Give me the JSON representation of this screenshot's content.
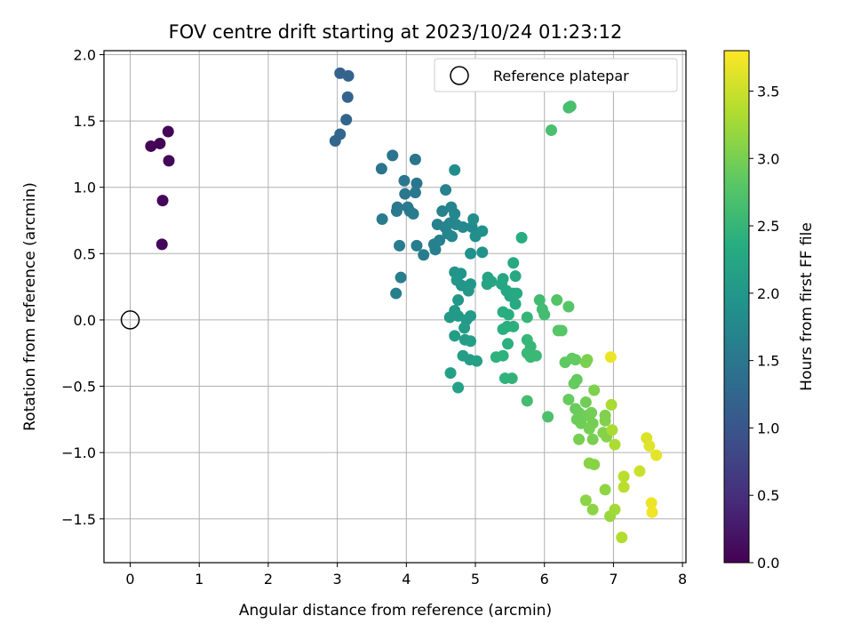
{
  "chart_data": {
    "type": "scatter",
    "title": "FOV centre drift starting at 2023/10/24 01:23:12",
    "xlabel": "Angular distance from reference (arcmin)",
    "ylabel": "Rotation from reference (arcmin)",
    "xlim": [
      -0.38,
      8.05
    ],
    "ylim": [
      -1.83,
      2.03
    ],
    "xticks": [
      0,
      1,
      2,
      3,
      4,
      5,
      6,
      7,
      8
    ],
    "yticks": [
      -1.5,
      -1.0,
      -0.5,
      0.0,
      0.5,
      1.0,
      1.5,
      2.0
    ],
    "grid": true,
    "legend": {
      "position": "top-right",
      "entries": [
        "Reference platepar"
      ]
    },
    "reference_point": {
      "x": 0,
      "y": 0
    },
    "colorbar": {
      "label": "Hours from first FF file",
      "colormap": "viridis",
      "range": [
        0.0,
        3.8
      ],
      "ticks": [
        0.0,
        0.5,
        1.0,
        1.5,
        2.0,
        2.5,
        3.0,
        3.5
      ]
    },
    "points": [
      {
        "x": 0.3,
        "y": 1.31,
        "t": 0.02
      },
      {
        "x": 0.43,
        "y": 1.33,
        "t": 0.03
      },
      {
        "x": 0.55,
        "y": 1.42,
        "t": 0.04
      },
      {
        "x": 0.56,
        "y": 1.2,
        "t": 0.05
      },
      {
        "x": 0.47,
        "y": 0.9,
        "t": 0.06
      },
      {
        "x": 0.46,
        "y": 0.57,
        "t": 0.07
      },
      {
        "x": 3.04,
        "y": 1.86,
        "t": 1.2
      },
      {
        "x": 3.16,
        "y": 1.84,
        "t": 1.21
      },
      {
        "x": 3.15,
        "y": 1.68,
        "t": 1.22
      },
      {
        "x": 3.13,
        "y": 1.51,
        "t": 1.23
      },
      {
        "x": 3.04,
        "y": 1.4,
        "t": 1.24
      },
      {
        "x": 2.97,
        "y": 1.35,
        "t": 1.25
      },
      {
        "x": 3.8,
        "y": 1.24,
        "t": 1.45
      },
      {
        "x": 3.64,
        "y": 1.14,
        "t": 1.46
      },
      {
        "x": 4.13,
        "y": 1.21,
        "t": 1.47
      },
      {
        "x": 3.97,
        "y": 1.05,
        "t": 1.48
      },
      {
        "x": 4.15,
        "y": 1.03,
        "t": 1.49
      },
      {
        "x": 3.98,
        "y": 0.95,
        "t": 1.5
      },
      {
        "x": 4.13,
        "y": 0.96,
        "t": 1.51
      },
      {
        "x": 3.87,
        "y": 0.85,
        "t": 1.52
      },
      {
        "x": 3.86,
        "y": 0.82,
        "t": 1.53
      },
      {
        "x": 4.02,
        "y": 0.85,
        "t": 1.54
      },
      {
        "x": 4.05,
        "y": 0.82,
        "t": 1.55
      },
      {
        "x": 4.1,
        "y": 0.8,
        "t": 1.56
      },
      {
        "x": 3.65,
        "y": 0.76,
        "t": 1.57
      },
      {
        "x": 3.9,
        "y": 0.56,
        "t": 1.58
      },
      {
        "x": 4.15,
        "y": 0.56,
        "t": 1.59
      },
      {
        "x": 4.25,
        "y": 0.49,
        "t": 1.6
      },
      {
        "x": 3.92,
        "y": 0.32,
        "t": 1.61
      },
      {
        "x": 3.85,
        "y": 0.2,
        "t": 1.62
      },
      {
        "x": 4.4,
        "y": 0.57,
        "t": 1.63
      },
      {
        "x": 4.42,
        "y": 0.53,
        "t": 1.64
      },
      {
        "x": 4.48,
        "y": 0.6,
        "t": 1.65
      },
      {
        "x": 4.45,
        "y": 0.72,
        "t": 1.66
      },
      {
        "x": 4.52,
        "y": 0.82,
        "t": 1.67
      },
      {
        "x": 4.57,
        "y": 0.98,
        "t": 1.68
      },
      {
        "x": 4.56,
        "y": 0.7,
        "t": 1.69
      },
      {
        "x": 4.6,
        "y": 0.65,
        "t": 1.7
      },
      {
        "x": 4.63,
        "y": 0.73,
        "t": 1.71
      },
      {
        "x": 4.65,
        "y": 0.85,
        "t": 1.72
      },
      {
        "x": 4.7,
        "y": 0.8,
        "t": 1.73
      },
      {
        "x": 4.72,
        "y": 0.72,
        "t": 1.74
      },
      {
        "x": 4.66,
        "y": 0.63,
        "t": 1.75
      },
      {
        "x": 4.82,
        "y": 0.7,
        "t": 1.76
      },
      {
        "x": 4.95,
        "y": 0.7,
        "t": 1.77
      },
      {
        "x": 4.7,
        "y": 1.13,
        "t": 1.85
      },
      {
        "x": 4.97,
        "y": 0.76,
        "t": 1.86
      },
      {
        "x": 5.0,
        "y": 0.63,
        "t": 1.88
      },
      {
        "x": 5.1,
        "y": 0.67,
        "t": 1.9
      },
      {
        "x": 4.93,
        "y": 0.5,
        "t": 1.92
      },
      {
        "x": 5.1,
        "y": 0.51,
        "t": 1.94
      },
      {
        "x": 4.7,
        "y": 0.36,
        "t": 1.96
      },
      {
        "x": 4.79,
        "y": 0.35,
        "t": 1.97
      },
      {
        "x": 4.73,
        "y": 0.3,
        "t": 1.98
      },
      {
        "x": 4.8,
        "y": 0.26,
        "t": 1.99
      },
      {
        "x": 4.93,
        "y": 0.27,
        "t": 2.0
      },
      {
        "x": 4.9,
        "y": 0.22,
        "t": 2.01
      },
      {
        "x": 4.75,
        "y": 0.15,
        "t": 2.02
      },
      {
        "x": 4.7,
        "y": 0.07,
        "t": 2.03
      },
      {
        "x": 4.63,
        "y": 0.02,
        "t": 2.04
      },
      {
        "x": 4.75,
        "y": 0.03,
        "t": 2.05
      },
      {
        "x": 4.87,
        "y": 0.0,
        "t": 2.06
      },
      {
        "x": 4.93,
        "y": 0.03,
        "t": 2.07
      },
      {
        "x": 4.84,
        "y": -0.06,
        "t": 2.08
      },
      {
        "x": 4.7,
        "y": -0.12,
        "t": 2.09
      },
      {
        "x": 4.85,
        "y": -0.15,
        "t": 2.1
      },
      {
        "x": 4.93,
        "y": -0.16,
        "t": 2.11
      },
      {
        "x": 4.82,
        "y": -0.27,
        "t": 2.12
      },
      {
        "x": 4.92,
        "y": -0.3,
        "t": 2.13
      },
      {
        "x": 5.02,
        "y": -0.31,
        "t": 2.14
      },
      {
        "x": 4.64,
        "y": -0.4,
        "t": 2.15
      },
      {
        "x": 4.75,
        "y": -0.51,
        "t": 2.16
      },
      {
        "x": 5.18,
        "y": 0.32,
        "t": 2.2
      },
      {
        "x": 5.17,
        "y": 0.27,
        "t": 2.21
      },
      {
        "x": 5.23,
        "y": 0.29,
        "t": 2.22
      },
      {
        "x": 5.4,
        "y": 0.31,
        "t": 2.23
      },
      {
        "x": 5.38,
        "y": 0.27,
        "t": 2.24
      },
      {
        "x": 5.45,
        "y": 0.22,
        "t": 2.25
      },
      {
        "x": 5.5,
        "y": 0.18,
        "t": 2.26
      },
      {
        "x": 5.55,
        "y": 0.2,
        "t": 2.27
      },
      {
        "x": 5.58,
        "y": 0.33,
        "t": 2.28
      },
      {
        "x": 5.55,
        "y": 0.43,
        "t": 2.29
      },
      {
        "x": 5.6,
        "y": 0.2,
        "t": 2.3
      },
      {
        "x": 5.58,
        "y": 0.12,
        "t": 2.31
      },
      {
        "x": 5.67,
        "y": 0.62,
        "t": 2.35
      },
      {
        "x": 5.4,
        "y": 0.06,
        "t": 2.36
      },
      {
        "x": 5.48,
        "y": 0.04,
        "t": 2.37
      },
      {
        "x": 5.46,
        "y": -0.05,
        "t": 2.38
      },
      {
        "x": 5.4,
        "y": -0.07,
        "t": 2.39
      },
      {
        "x": 5.55,
        "y": -0.05,
        "t": 2.4
      },
      {
        "x": 5.47,
        "y": -0.18,
        "t": 2.41
      },
      {
        "x": 5.4,
        "y": -0.27,
        "t": 2.42
      },
      {
        "x": 5.3,
        "y": -0.28,
        "t": 2.43
      },
      {
        "x": 5.43,
        "y": -0.44,
        "t": 2.44
      },
      {
        "x": 5.53,
        "y": -0.44,
        "t": 2.45
      },
      {
        "x": 5.75,
        "y": 0.02,
        "t": 2.5
      },
      {
        "x": 5.75,
        "y": -0.15,
        "t": 2.51
      },
      {
        "x": 5.8,
        "y": -0.2,
        "t": 2.52
      },
      {
        "x": 5.75,
        "y": -0.25,
        "t": 2.53
      },
      {
        "x": 5.8,
        "y": -0.28,
        "t": 2.54
      },
      {
        "x": 5.88,
        "y": -0.27,
        "t": 2.55
      },
      {
        "x": 5.93,
        "y": 0.15,
        "t": 2.6
      },
      {
        "x": 5.97,
        "y": 0.08,
        "t": 2.61
      },
      {
        "x": 6.0,
        "y": 0.04,
        "t": 2.62
      },
      {
        "x": 5.75,
        "y": -0.61,
        "t": 2.63
      },
      {
        "x": 6.05,
        "y": -0.73,
        "t": 2.7
      },
      {
        "x": 6.18,
        "y": 0.15,
        "t": 2.75
      },
      {
        "x": 6.35,
        "y": 0.1,
        "t": 2.76
      },
      {
        "x": 6.2,
        "y": -0.08,
        "t": 2.78
      },
      {
        "x": 6.25,
        "y": -0.08,
        "t": 2.79
      },
      {
        "x": 6.35,
        "y": 1.6,
        "t": 2.65
      },
      {
        "x": 6.38,
        "y": 1.61,
        "t": 2.66
      },
      {
        "x": 6.1,
        "y": 1.43,
        "t": 2.67
      },
      {
        "x": 6.3,
        "y": -0.32,
        "t": 2.85
      },
      {
        "x": 6.4,
        "y": -0.29,
        "t": 2.86
      },
      {
        "x": 6.45,
        "y": -0.3,
        "t": 2.87
      },
      {
        "x": 6.47,
        "y": -0.45,
        "t": 2.88
      },
      {
        "x": 6.43,
        "y": -0.48,
        "t": 2.89
      },
      {
        "x": 6.35,
        "y": -0.6,
        "t": 2.9
      },
      {
        "x": 6.45,
        "y": -0.67,
        "t": 2.91
      },
      {
        "x": 6.5,
        "y": -0.7,
        "t": 2.92
      },
      {
        "x": 6.47,
        "y": -0.75,
        "t": 2.93
      },
      {
        "x": 6.53,
        "y": -0.78,
        "t": 2.94
      },
      {
        "x": 6.6,
        "y": -0.62,
        "t": 2.95
      },
      {
        "x": 6.62,
        "y": -0.72,
        "t": 2.96
      },
      {
        "x": 6.68,
        "y": -0.7,
        "t": 2.97
      },
      {
        "x": 6.7,
        "y": -0.78,
        "t": 2.98
      },
      {
        "x": 6.65,
        "y": -0.82,
        "t": 2.99
      },
      {
        "x": 6.5,
        "y": -0.9,
        "t": 3.0
      },
      {
        "x": 6.7,
        "y": -0.9,
        "t": 3.01
      },
      {
        "x": 6.6,
        "y": -0.32,
        "t": 3.02
      },
      {
        "x": 6.62,
        "y": -0.3,
        "t": 3.03
      },
      {
        "x": 6.72,
        "y": -0.53,
        "t": 3.04
      },
      {
        "x": 6.88,
        "y": -0.72,
        "t": 3.05
      },
      {
        "x": 6.88,
        "y": -0.76,
        "t": 3.06
      },
      {
        "x": 6.85,
        "y": -0.85,
        "t": 3.07
      },
      {
        "x": 6.9,
        "y": -0.88,
        "t": 3.08
      },
      {
        "x": 6.65,
        "y": -1.08,
        "t": 3.1
      },
      {
        "x": 6.72,
        "y": -1.09,
        "t": 3.11
      },
      {
        "x": 6.6,
        "y": -1.36,
        "t": 3.12
      },
      {
        "x": 6.7,
        "y": -1.43,
        "t": 3.13
      },
      {
        "x": 6.88,
        "y": -1.28,
        "t": 3.14
      },
      {
        "x": 6.95,
        "y": -1.48,
        "t": 3.2
      },
      {
        "x": 7.02,
        "y": -1.43,
        "t": 3.25
      },
      {
        "x": 6.97,
        "y": -0.64,
        "t": 3.3
      },
      {
        "x": 6.98,
        "y": -0.83,
        "t": 3.31
      },
      {
        "x": 7.02,
        "y": -0.94,
        "t": 3.32
      },
      {
        "x": 7.12,
        "y": -1.64,
        "t": 3.35
      },
      {
        "x": 7.15,
        "y": -1.18,
        "t": 3.4
      },
      {
        "x": 7.15,
        "y": -1.26,
        "t": 3.41
      },
      {
        "x": 6.96,
        "y": -0.28,
        "t": 3.7
      },
      {
        "x": 7.38,
        "y": -1.14,
        "t": 3.5
      },
      {
        "x": 7.48,
        "y": -0.89,
        "t": 3.6
      },
      {
        "x": 7.52,
        "y": -0.95,
        "t": 3.62
      },
      {
        "x": 7.62,
        "y": -1.02,
        "t": 3.65
      },
      {
        "x": 7.55,
        "y": -1.38,
        "t": 3.7
      },
      {
        "x": 7.56,
        "y": -1.45,
        "t": 3.72
      }
    ]
  }
}
